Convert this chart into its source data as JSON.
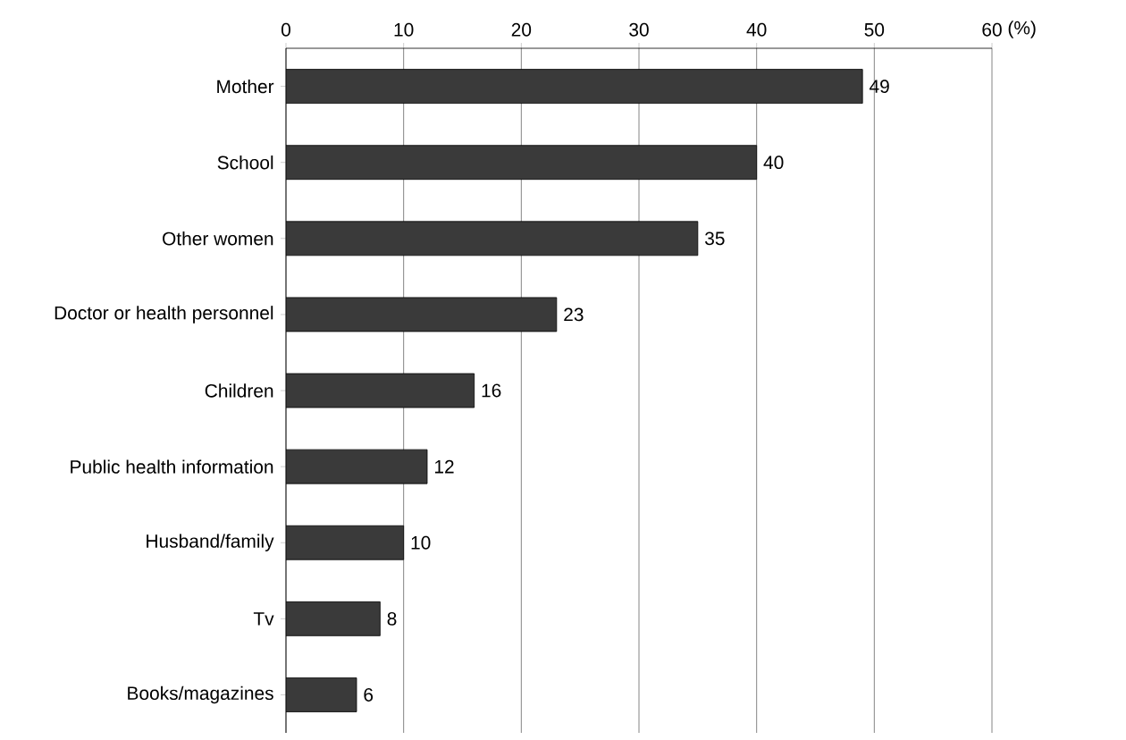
{
  "chart_data": {
    "type": "bar",
    "orientation": "horizontal",
    "xlabel": "(%)",
    "categories": [
      "Mother",
      "School",
      "Other women",
      "Doctor or health personnel",
      "Children",
      "Public health information",
      "Husband/family",
      "Tv",
      "Books/magazines"
    ],
    "values": [
      49,
      40,
      35,
      23,
      16,
      12,
      10,
      8,
      6
    ],
    "color": "#3a3a3a",
    "xlim": [
      0,
      60
    ],
    "xticks": [
      0,
      10,
      20,
      30,
      40,
      50,
      60
    ],
    "grid": "x",
    "data_labels": true
  }
}
